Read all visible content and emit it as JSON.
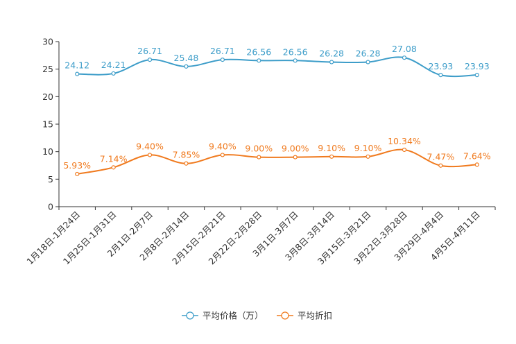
{
  "chart_data": {
    "type": "line",
    "categories": [
      "1月18日-1月24日",
      "1月25日-1月31日",
      "2月1日-2月7日",
      "2月8日-2月14日",
      "2月15日-2月21日",
      "2月22日-2月28日",
      "3月1日-3月7日",
      "3月8日-3月14日",
      "3月15日-3月21日",
      "3月22日-3月28日",
      "3月29日-4月4日",
      "4月5日-4月11日"
    ],
    "ylim": [
      0,
      30
    ],
    "yticks": [
      0,
      5,
      10,
      15,
      20,
      25,
      30
    ],
    "grid": false,
    "legend": "bottom-center",
    "series": [
      {
        "name": "平均价格（万）",
        "color": "#3d9dc9",
        "values": [
          24.12,
          24.21,
          26.71,
          25.48,
          26.71,
          26.56,
          26.56,
          26.28,
          26.28,
          27.08,
          23.93,
          23.93
        ],
        "labels": [
          "24.12",
          "24.21",
          "26.71",
          "25.48",
          "26.71",
          "26.56",
          "26.56",
          "26.28",
          "26.28",
          "27.08",
          "23.93",
          "23.93"
        ]
      },
      {
        "name": "平均折扣",
        "color": "#f07a1e",
        "values": [
          5.93,
          7.14,
          9.4,
          7.85,
          9.4,
          9.0,
          9.0,
          9.1,
          9.1,
          10.34,
          7.47,
          7.64
        ],
        "labels": [
          "5.93%",
          "7.14%",
          "9.40%",
          "7.85%",
          "9.40%",
          "9.00%",
          "9.00%",
          "9.10%",
          "9.10%",
          "10.34%",
          "7.47%",
          "7.64%"
        ]
      }
    ]
  }
}
